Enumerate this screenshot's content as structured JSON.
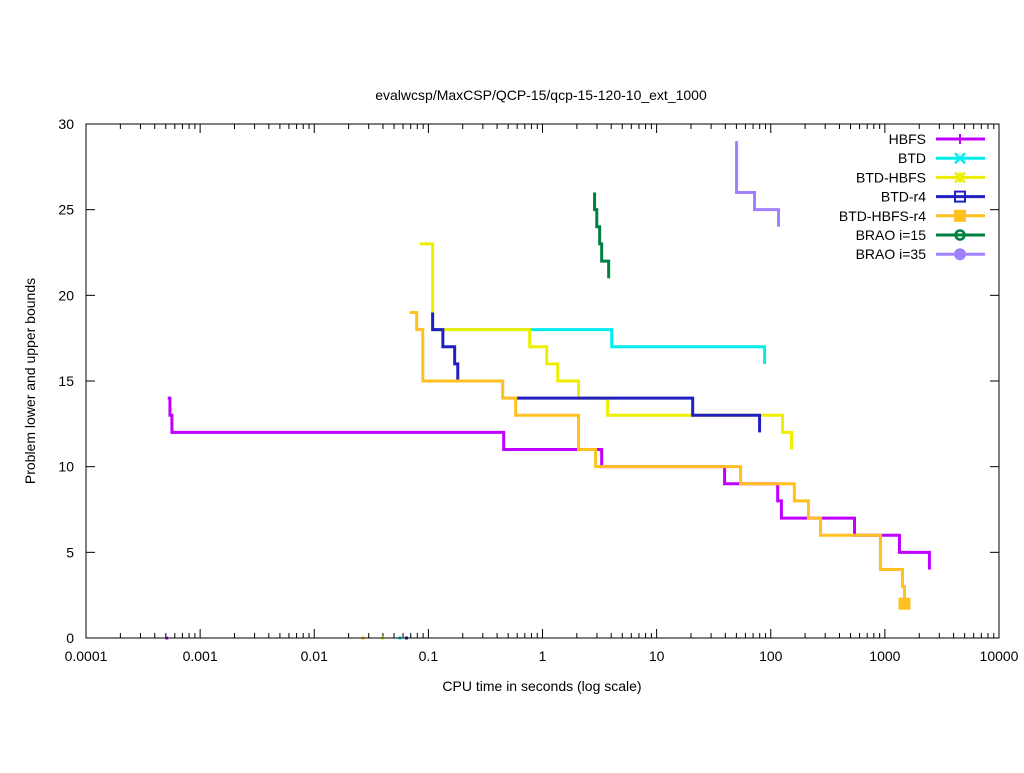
{
  "chart_data": {
    "type": "line",
    "title": "evalwcsp/MaxCSP/QCP-15/qcp-15-120-10_ext_1000",
    "xlabel": "CPU time in seconds (log scale)",
    "ylabel": "Problem lower and upper bounds",
    "xscale": "log",
    "xlim": [
      0.0001,
      10000
    ],
    "ylim": [
      0,
      30
    ],
    "xticks": [
      {
        "value": 0.0001,
        "label": "0.0001"
      },
      {
        "value": 0.001,
        "label": "0.001"
      },
      {
        "value": 0.01,
        "label": "0.01"
      },
      {
        "value": 0.1,
        "label": "0.1"
      },
      {
        "value": 1,
        "label": "1"
      },
      {
        "value": 10,
        "label": "10"
      },
      {
        "value": 100,
        "label": "100"
      },
      {
        "value": 1000,
        "label": "1000"
      },
      {
        "value": 10000,
        "label": "10000"
      }
    ],
    "yticks": [
      {
        "value": 0,
        "label": "0"
      },
      {
        "value": 5,
        "label": "5"
      },
      {
        "value": 10,
        "label": "10"
      },
      {
        "value": 15,
        "label": "15"
      },
      {
        "value": 20,
        "label": "20"
      },
      {
        "value": 25,
        "label": "25"
      },
      {
        "value": 30,
        "label": "30"
      }
    ],
    "grid": false,
    "legend_position": "top-right",
    "series": [
      {
        "name": "HBFS",
        "color": "#c000ff",
        "marker": "plus",
        "points": [
          [
            0.00052,
            14
          ],
          [
            0.000544,
            14
          ],
          [
            0.000544,
            13
          ],
          [
            0.000566,
            13
          ],
          [
            0.000566,
            12
          ],
          [
            0.457,
            12
          ],
          [
            0.457,
            11
          ],
          [
            3.3,
            11
          ],
          [
            3.3,
            10
          ],
          [
            39.4,
            10
          ],
          [
            39.4,
            9
          ],
          [
            115,
            9
          ],
          [
            115,
            8
          ],
          [
            124,
            8
          ],
          [
            124,
            7
          ],
          [
            542,
            7
          ],
          [
            542,
            6
          ],
          [
            1342,
            6
          ],
          [
            1342,
            5
          ],
          [
            2457,
            5
          ],
          [
            2457,
            4
          ]
        ],
        "zero_points": [
          0.00051
        ]
      },
      {
        "name": "BTD",
        "color": "#00eeee",
        "marker": "cross",
        "points": [
          [
            0.109,
            18
          ],
          [
            4.04,
            18
          ],
          [
            4.04,
            17
          ],
          [
            88.3,
            17
          ],
          [
            88.3,
            16
          ]
        ],
        "zero_points": [
          0.0562
        ]
      },
      {
        "name": "BTD-HBFS",
        "color": "#eeee00",
        "marker": "star",
        "points": [
          [
            0.084,
            23
          ],
          [
            0.109,
            23
          ],
          [
            0.109,
            18
          ],
          [
            0.772,
            18
          ],
          [
            0.772,
            17
          ],
          [
            1.089,
            17
          ],
          [
            1.089,
            16
          ],
          [
            1.36,
            16
          ],
          [
            1.36,
            15
          ],
          [
            2.07,
            15
          ],
          [
            2.07,
            14
          ],
          [
            3.72,
            14
          ],
          [
            3.72,
            13
          ],
          [
            126.9,
            13
          ],
          [
            126.9,
            12
          ],
          [
            152,
            12
          ],
          [
            152,
            11
          ]
        ],
        "zero_points": [
          0.0398
        ]
      },
      {
        "name": "BTD-r4",
        "color": "#2020c0",
        "marker": "open-square",
        "points": [
          [
            0.109,
            19
          ],
          [
            0.109,
            18
          ],
          [
            0.134,
            18
          ],
          [
            0.134,
            17
          ],
          [
            0.17,
            17
          ],
          [
            0.17,
            16
          ],
          [
            0.181,
            16
          ],
          [
            0.181,
            15
          ]
        ],
        "points2": [
          [
            0.594,
            14
          ],
          [
            20.7,
            14
          ],
          [
            20.7,
            13
          ],
          [
            79.8,
            13
          ],
          [
            79.8,
            12
          ]
        ],
        "zero_points": [
          0.0643
        ]
      },
      {
        "name": "BTD-HBFS-r4",
        "color": "#ffc020",
        "marker": "filled-square",
        "points": [
          [
            0.0687,
            19
          ],
          [
            0.079,
            19
          ],
          [
            0.079,
            18
          ],
          [
            0.0893,
            18
          ],
          [
            0.0893,
            15
          ],
          [
            0.448,
            15
          ],
          [
            0.448,
            14
          ],
          [
            0.582,
            14
          ],
          [
            0.582,
            13
          ],
          [
            2.07,
            13
          ],
          [
            2.07,
            11
          ],
          [
            2.92,
            11
          ],
          [
            2.92,
            10
          ],
          [
            54.4,
            10
          ],
          [
            54.4,
            9
          ],
          [
            161,
            9
          ],
          [
            161,
            8
          ],
          [
            214,
            8
          ],
          [
            214,
            7
          ],
          [
            273,
            7
          ],
          [
            273,
            6
          ],
          [
            914,
            6
          ],
          [
            914,
            4
          ],
          [
            1426,
            4
          ],
          [
            1426,
            3
          ],
          [
            1486,
            3
          ],
          [
            1486,
            2
          ]
        ],
        "end_marker": [
          1486,
          2
        ],
        "zero_points": [
          0.0267
        ]
      },
      {
        "name": "BRAO i=15",
        "color": "#008040",
        "marker": "open-circle",
        "points": [
          [
            2.86,
            26
          ],
          [
            2.86,
            25
          ],
          [
            2.99,
            25
          ],
          [
            2.99,
            24
          ],
          [
            3.17,
            24
          ],
          [
            3.17,
            23
          ],
          [
            3.3,
            23
          ],
          [
            3.3,
            22
          ],
          [
            3.8,
            22
          ],
          [
            3.8,
            21
          ]
        ],
        "zero_points": []
      },
      {
        "name": "BRAO i=35",
        "color": "#a080ff",
        "marker": "filled-circle",
        "points": [
          [
            50.2,
            29
          ],
          [
            50.2,
            26
          ],
          [
            72.1,
            26
          ],
          [
            72.1,
            25
          ],
          [
            117,
            25
          ],
          [
            117,
            24
          ]
        ],
        "zero_points": []
      }
    ]
  }
}
